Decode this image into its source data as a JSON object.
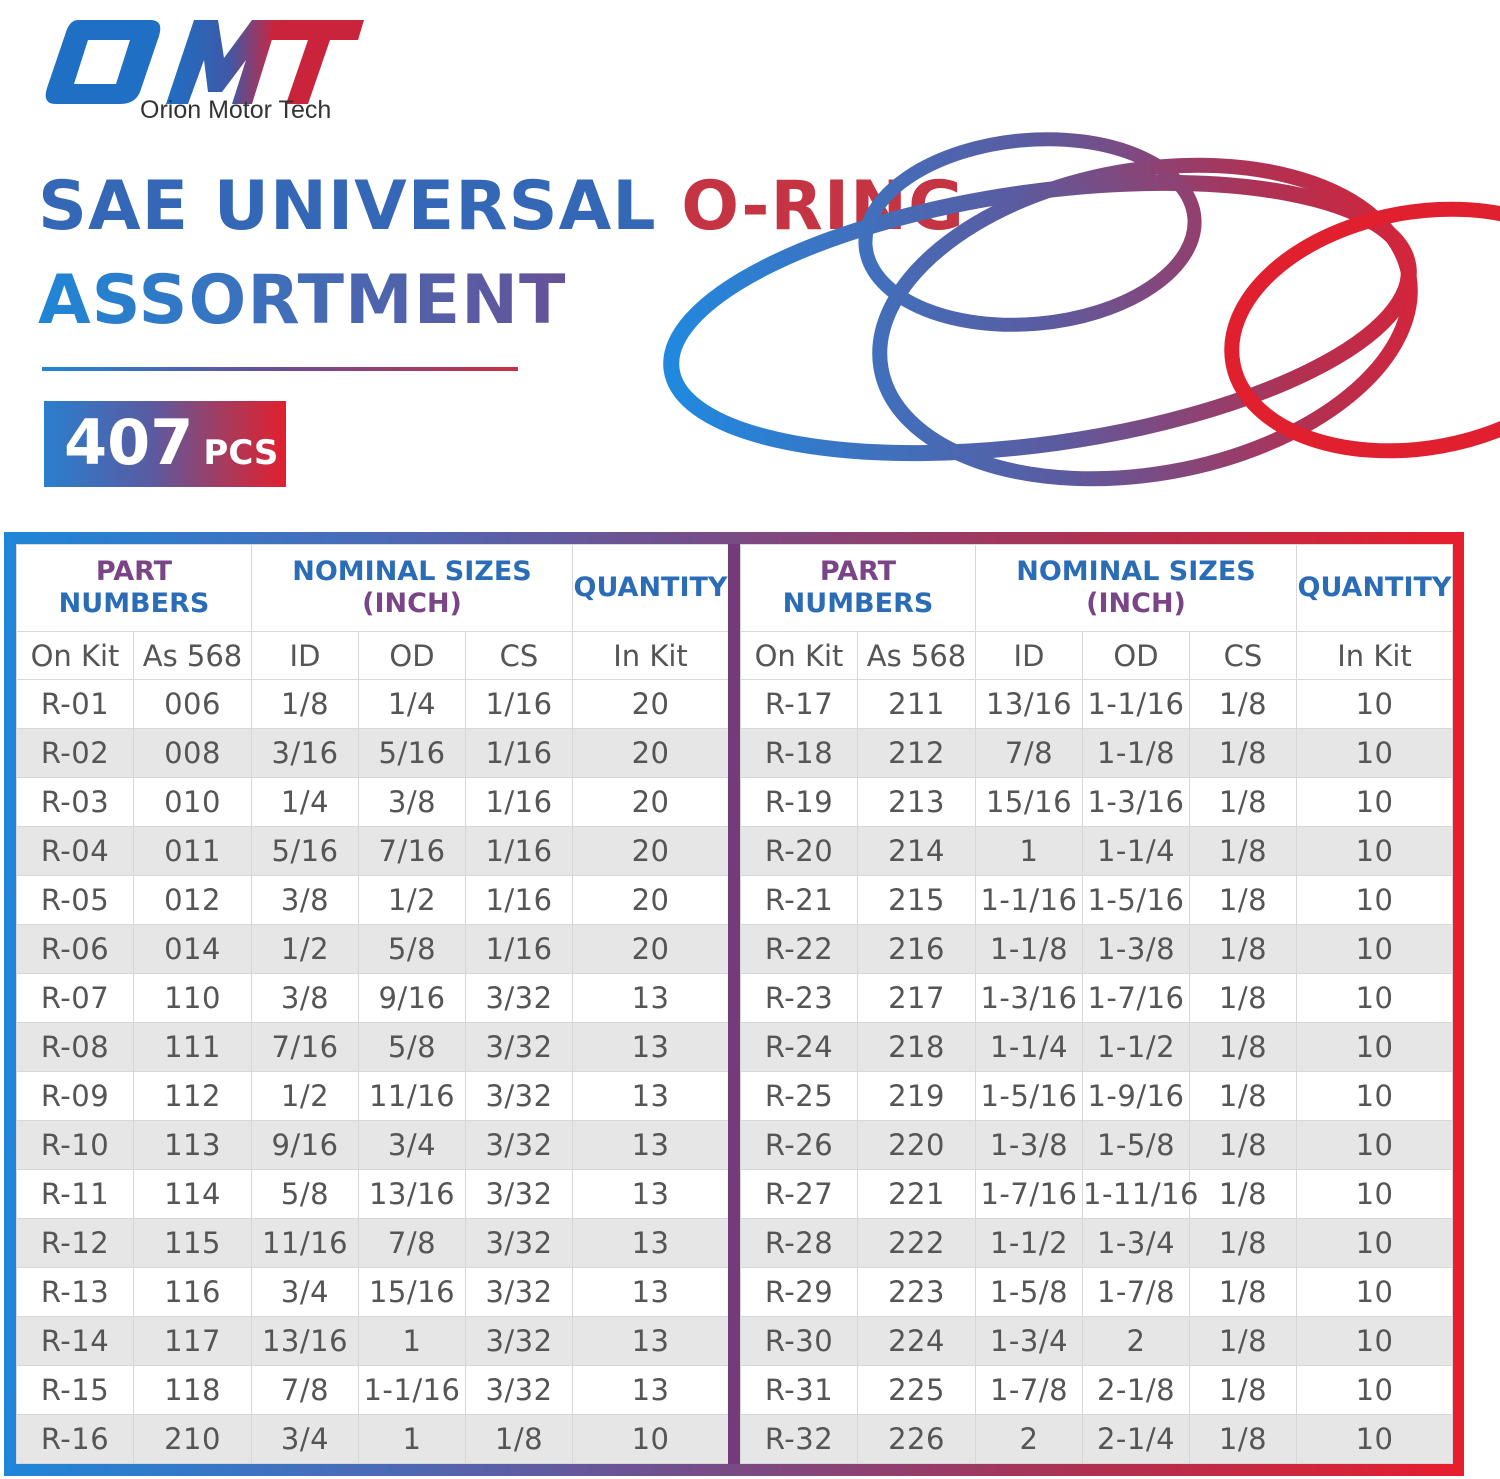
{
  "brand": {
    "logo_text": "OMT",
    "name": "Orion Motor Tech"
  },
  "title": {
    "line1_part1": "SAE UNIVERSAL ",
    "line1_part2": "O-RING",
    "line2": "ASSORTMENT"
  },
  "badge": {
    "count": "407",
    "unit": "PCS"
  },
  "colors": {
    "blue": "#1f86d8",
    "purple": "#743b7b",
    "red": "#e81e2d",
    "row_stripe": "#e6e6e6"
  },
  "table": {
    "header": {
      "part_numbers_line1": "PART",
      "part_numbers_line2": "NUMBERS",
      "nominal_line1": "NOMINAL SIZES",
      "nominal_line2": "(INCH)",
      "quantity": "QUANTITY",
      "sub": [
        "On Kit",
        "As 568",
        "ID",
        "OD",
        "CS",
        "In Kit"
      ]
    },
    "left_rows": [
      [
        "R-01",
        "006",
        "1/8",
        "1/4",
        "1/16",
        "20"
      ],
      [
        "R-02",
        "008",
        "3/16",
        "5/16",
        "1/16",
        "20"
      ],
      [
        "R-03",
        "010",
        "1/4",
        "3/8",
        "1/16",
        "20"
      ],
      [
        "R-04",
        "011",
        "5/16",
        "7/16",
        "1/16",
        "20"
      ],
      [
        "R-05",
        "012",
        "3/8",
        "1/2",
        "1/16",
        "20"
      ],
      [
        "R-06",
        "014",
        "1/2",
        "5/8",
        "1/16",
        "20"
      ],
      [
        "R-07",
        "110",
        "3/8",
        "9/16",
        "3/32",
        "13"
      ],
      [
        "R-08",
        "111",
        "7/16",
        "5/8",
        "3/32",
        "13"
      ],
      [
        "R-09",
        "112",
        "1/2",
        "11/16",
        "3/32",
        "13"
      ],
      [
        "R-10",
        "113",
        "9/16",
        "3/4",
        "3/32",
        "13"
      ],
      [
        "R-11",
        "114",
        "5/8",
        "13/16",
        "3/32",
        "13"
      ],
      [
        "R-12",
        "115",
        "11/16",
        "7/8",
        "3/32",
        "13"
      ],
      [
        "R-13",
        "116",
        "3/4",
        "15/16",
        "3/32",
        "13"
      ],
      [
        "R-14",
        "117",
        "13/16",
        "1",
        "3/32",
        "13"
      ],
      [
        "R-15",
        "118",
        "7/8",
        "1-1/16",
        "3/32",
        "13"
      ],
      [
        "R-16",
        "210",
        "3/4",
        "1",
        "1/8",
        "10"
      ]
    ],
    "right_rows": [
      [
        "R-17",
        "211",
        "13/16",
        "1-1/16",
        "1/8",
        "10"
      ],
      [
        "R-18",
        "212",
        "7/8",
        "1-1/8",
        "1/8",
        "10"
      ],
      [
        "R-19",
        "213",
        "15/16",
        "1-3/16",
        "1/8",
        "10"
      ],
      [
        "R-20",
        "214",
        "1",
        "1-1/4",
        "1/8",
        "10"
      ],
      [
        "R-21",
        "215",
        "1-1/16",
        "1-5/16",
        "1/8",
        "10"
      ],
      [
        "R-22",
        "216",
        "1-1/8",
        "1-3/8",
        "1/8",
        "10"
      ],
      [
        "R-23",
        "217",
        "1-3/16",
        "1-7/16",
        "1/8",
        "10"
      ],
      [
        "R-24",
        "218",
        "1-1/4",
        "1-1/2",
        "1/8",
        "10"
      ],
      [
        "R-25",
        "219",
        "1-5/16",
        "1-9/16",
        "1/8",
        "10"
      ],
      [
        "R-26",
        "220",
        "1-3/8",
        "1-5/8",
        "1/8",
        "10"
      ],
      [
        "R-27",
        "221",
        "1-7/16",
        "1-11/16",
        "1/8",
        "10"
      ],
      [
        "R-28",
        "222",
        "1-1/2",
        "1-3/4",
        "1/8",
        "10"
      ],
      [
        "R-29",
        "223",
        "1-5/8",
        "1-7/8",
        "1/8",
        "10"
      ],
      [
        "R-30",
        "224",
        "1-3/4",
        "2",
        "1/8",
        "10"
      ],
      [
        "R-31",
        "225",
        "1-7/8",
        "2-1/8",
        "1/8",
        "10"
      ],
      [
        "R-32",
        "226",
        "2",
        "2-1/4",
        "1/8",
        "10"
      ]
    ]
  }
}
